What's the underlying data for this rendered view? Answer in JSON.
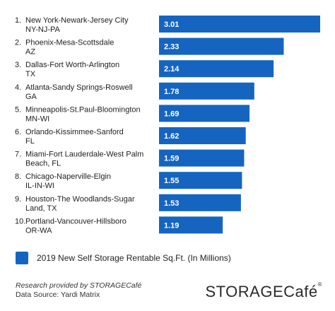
{
  "chart_data": {
    "type": "bar",
    "orientation": "horizontal",
    "categories": [
      {
        "rank": "1.",
        "name": "New York-Newark-Jersey City",
        "sub": "NY-NJ-PA"
      },
      {
        "rank": "2.",
        "name": "Phoenix-Mesa-Scottsdale",
        "sub": "AZ"
      },
      {
        "rank": "3.",
        "name": "Dallas-Fort Worth-Arlington",
        "sub": "TX"
      },
      {
        "rank": "4.",
        "name": "Atlanta-Sandy Springs-Roswell",
        "sub": "GA"
      },
      {
        "rank": "5.",
        "name": "Minneapolis-St.Paul-Bloomington",
        "sub": "MN-WI"
      },
      {
        "rank": "6.",
        "name": "Orlando-Kissimmee-Sanford",
        "sub": "FL"
      },
      {
        "rank": "7.",
        "name": "Miami-Fort Lauderdale-West Palm",
        "sub": "Beach, FL"
      },
      {
        "rank": "8.",
        "name": "Chicago-Naperville-Elgin",
        "sub": "IL-IN-WI"
      },
      {
        "rank": "9.",
        "name": "Houston-The Woodlands-Sugar",
        "sub": "Land, TX"
      },
      {
        "rank": "10.",
        "name": "Portland-Vancouver-Hillsboro",
        "sub": "OR-WA"
      }
    ],
    "series": [
      {
        "name": "2019 New Self Storage Rentable Sq.Ft. (In Millions)",
        "values": [
          3.01,
          2.33,
          2.14,
          1.78,
          1.69,
          1.62,
          1.59,
          1.55,
          1.53,
          1.19
        ],
        "labels": [
          "3.01",
          "2.33",
          "2.14",
          "1.78",
          "1.69",
          "1.62",
          "1.59",
          "1.55",
          "1.53",
          "1.19"
        ],
        "color": "#1565c0"
      }
    ],
    "xlim": [
      0,
      3.01
    ],
    "grid": false,
    "legend_position": "bottom-left"
  },
  "footer": {
    "credit": "Research provided by STORAGECafé",
    "source": "Data Source: Yardi Matrix",
    "brand": "STORAGECafé",
    "brand_mark": "®"
  }
}
